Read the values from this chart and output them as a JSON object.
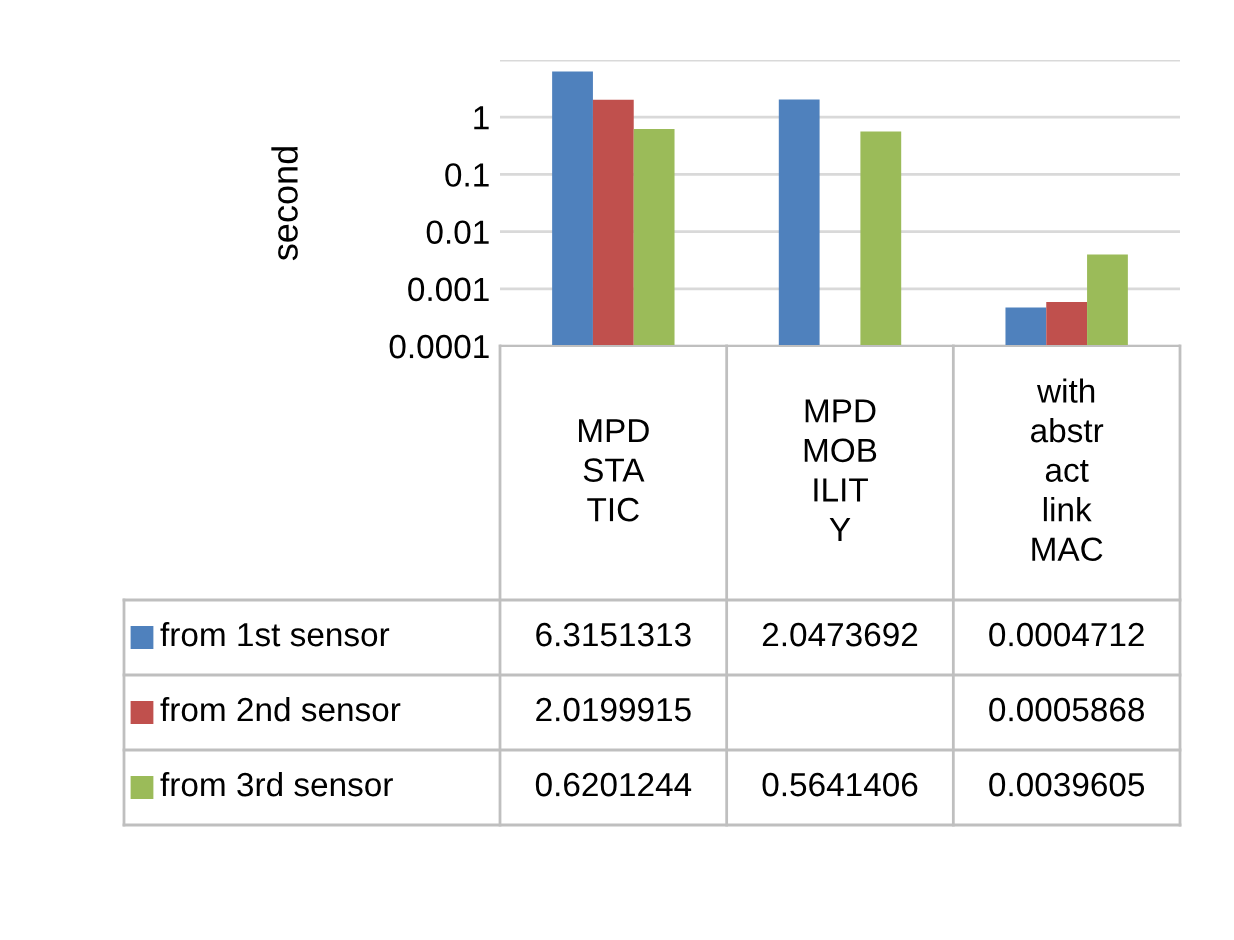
{
  "chart_data": {
    "type": "bar",
    "ylabel": "second",
    "categories": [
      "MPD STATIC",
      "MPD MOBILITY",
      "with abstract link MAC"
    ],
    "series": [
      {
        "name": "from 1st sensor",
        "color": "#4f81bd",
        "values": [
          6.3151313,
          2.0473692,
          0.0004712
        ]
      },
      {
        "name": "from 2nd sensor",
        "color": "#c0504d",
        "values": [
          2.0199915,
          null,
          0.0005868
        ]
      },
      {
        "name": "from 3rd sensor",
        "color": "#9bbb59",
        "values": [
          0.6201244,
          0.5641406,
          0.0039605
        ]
      }
    ],
    "log": "y",
    "ylim": [
      0.0001,
      10
    ],
    "yticks": [
      0.0001,
      0.001,
      0.01,
      0.1,
      1,
      {
        "value": 10,
        "label": null
      }
    ],
    "grid": "y",
    "legend": "bottom",
    "data_labels": true
  }
}
